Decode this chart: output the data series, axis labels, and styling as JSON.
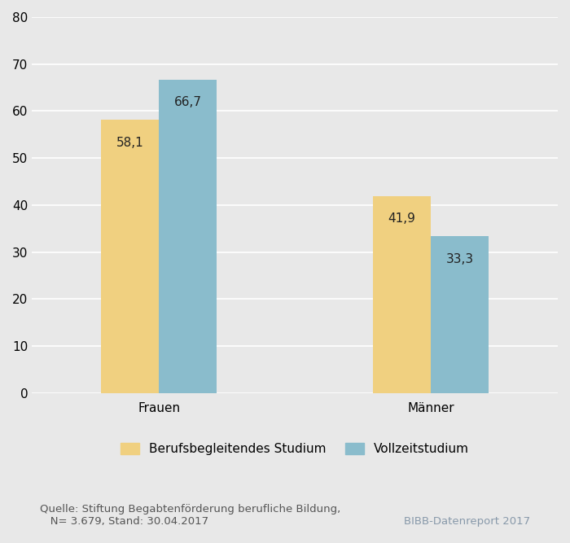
{
  "categories": [
    "Frauen",
    "Männer"
  ],
  "series": [
    {
      "name": "Berufsbegleitendes Studium",
      "values": [
        58.1,
        41.9
      ],
      "color": "#f0d080"
    },
    {
      "name": "Vollzeitstudium",
      "values": [
        66.7,
        33.3
      ],
      "color": "#8abccc"
    }
  ],
  "ylim": [
    0,
    80
  ],
  "yticks": [
    0,
    10,
    20,
    30,
    40,
    50,
    60,
    70,
    80
  ],
  "background_color": "#e8e8e8",
  "plot_bg_color": "#e8e8e8",
  "grid_color": "#ffffff",
  "value_label_color": "#222222",
  "bar_width": 0.32,
  "xlabel": "",
  "ylabel": "",
  "source_text": "Quelle: Stiftung Begabtenförderung berufliche Bildung,\n   N= 3.679, Stand: 30.04.2017",
  "source_right_text": "BIBB-Datenreport 2017",
  "tick_fontsize": 11,
  "label_fontsize": 11,
  "legend_fontsize": 11,
  "source_fontsize": 9.5,
  "value_fontsize": 11
}
